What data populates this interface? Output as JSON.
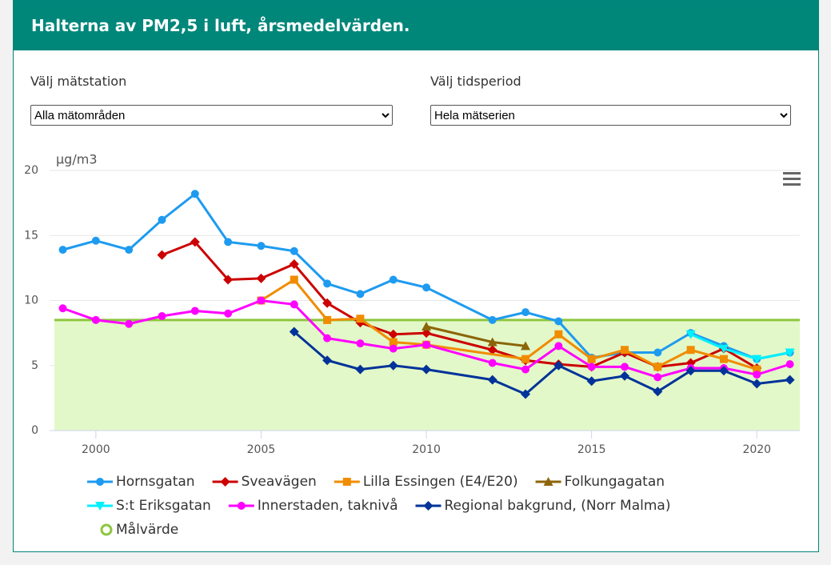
{
  "header": {
    "title": "Halterna av PM2,5 i luft, årsmedelvärden."
  },
  "controls": [
    {
      "label": "Välj mätstation",
      "selected": "Alla mätområden"
    },
    {
      "label": "Välj tidsperiod",
      "selected": "Hela mätserien"
    }
  ],
  "chart_data": {
    "type": "line",
    "y_axis_label": "μg/m3",
    "xlim": [
      1998.6,
      2021.3
    ],
    "xticks": [
      2000,
      2005,
      2010,
      2015,
      2020
    ],
    "ylim": [
      0,
      20
    ],
    "yticks": [
      0,
      5,
      10,
      15,
      20
    ],
    "grid": true,
    "series": [
      {
        "name": "Hornsgatan",
        "color": "#1e9bf0",
        "marker": "circle",
        "x": [
          1999,
          2000,
          2001,
          2002,
          2003,
          2004,
          2005,
          2006,
          2007,
          2008,
          2009,
          2010,
          2012,
          2013,
          2014,
          2015,
          2016,
          2017,
          2018,
          2019,
          2020,
          2021
        ],
        "values": [
          13.9,
          14.6,
          13.9,
          16.2,
          18.2,
          14.5,
          14.2,
          13.8,
          11.3,
          10.5,
          11.6,
          11.0,
          8.5,
          9.1,
          8.4,
          5.6,
          6.0,
          6.0,
          7.5,
          6.5,
          5.5,
          6.0
        ]
      },
      {
        "name": "Sveavägen",
        "color": "#cc0000",
        "marker": "diamond",
        "x": [
          2002,
          2003,
          2004,
          2005,
          2006,
          2007,
          2008,
          2009,
          2010,
          2012,
          2013,
          2014,
          2015,
          2016,
          2017,
          2018,
          2019,
          2020
        ],
        "values": [
          13.5,
          14.5,
          11.6,
          11.7,
          12.8,
          9.8,
          8.3,
          7.4,
          7.5,
          6.2,
          5.4,
          5.1,
          4.9,
          6.0,
          4.9,
          5.2,
          6.3,
          4.8
        ]
      },
      {
        "name": "Lilla Essingen (E4/E20)",
        "color": "#f08c00",
        "marker": "square",
        "x": [
          2005,
          2006,
          2007,
          2008,
          2009,
          2010,
          2013,
          2014,
          2015,
          2016,
          2017,
          2018,
          2019,
          2020
        ],
        "values": [
          10.0,
          11.6,
          8.5,
          8.6,
          6.8,
          6.6,
          5.5,
          7.4,
          5.5,
          6.2,
          4.9,
          6.2,
          5.5,
          4.7
        ]
      },
      {
        "name": "Folkungagatan",
        "color": "#8b6508",
        "marker": "triangle",
        "x": [
          2010,
          2012,
          2013
        ],
        "values": [
          8.0,
          6.8,
          6.5
        ]
      },
      {
        "name": "S:t Eriksgatan",
        "color": "#00f0ff",
        "marker": "triangle-down",
        "x": [
          2018,
          2019,
          2020,
          2021
        ],
        "values": [
          7.4,
          6.3,
          5.5,
          6.0
        ]
      },
      {
        "name": "Innerstaden, taknivå",
        "color": "#ff00ff",
        "marker": "circle",
        "x": [
          1999,
          2000,
          2001,
          2002,
          2003,
          2004,
          2005,
          2006,
          2007,
          2008,
          2009,
          2010,
          2012,
          2013,
          2014,
          2015,
          2016,
          2017,
          2018,
          2019,
          2020,
          2021
        ],
        "values": [
          9.4,
          8.5,
          8.2,
          8.8,
          9.2,
          9.0,
          10.0,
          9.7,
          7.1,
          6.7,
          6.3,
          6.6,
          5.2,
          4.7,
          6.5,
          4.9,
          4.9,
          4.1,
          4.8,
          4.8,
          4.3,
          5.1
        ]
      },
      {
        "name": "Regional bakgrund, (Norr Malma)",
        "color": "#003399",
        "marker": "diamond",
        "x": [
          2006,
          2007,
          2008,
          2009,
          2010,
          2012,
          2013,
          2014,
          2015,
          2016,
          2017,
          2018,
          2019,
          2020,
          2021
        ],
        "values": [
          7.6,
          5.4,
          4.7,
          5.0,
          4.7,
          3.9,
          2.8,
          5.0,
          3.8,
          4.2,
          3.0,
          4.6,
          4.6,
          3.6,
          3.9
        ]
      }
    ],
    "target": {
      "name": "Målvärde",
      "value": 8.5,
      "color": "#8dc63f",
      "fill": "#e3f8c8"
    }
  }
}
